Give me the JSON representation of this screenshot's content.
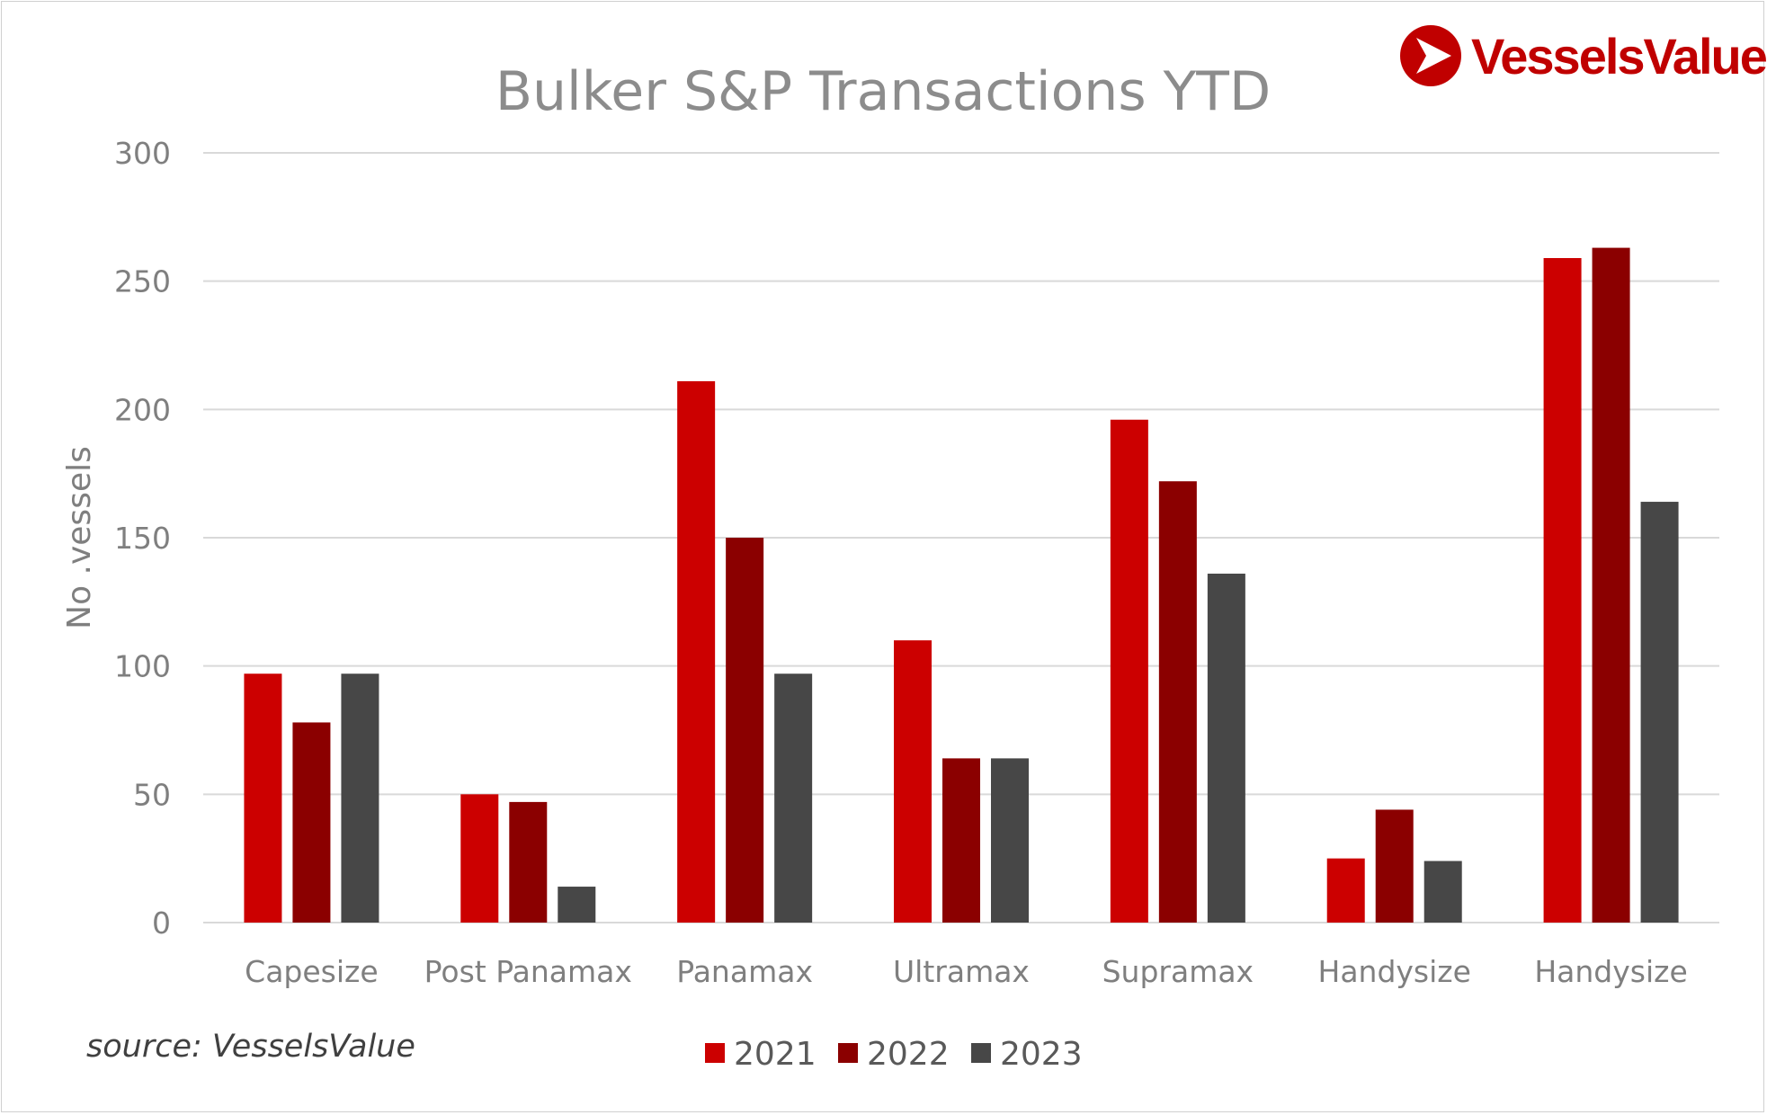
{
  "brand": {
    "name": "VesselsValue",
    "color": "#c00000"
  },
  "source_note": "source: VesselsValue",
  "chart_data": {
    "type": "bar",
    "title": "Bulker S&P Transactions YTD",
    "xlabel": "",
    "ylabel": "No .vessels",
    "ylim": [
      0,
      300
    ],
    "yticks": [
      0,
      50,
      100,
      150,
      200,
      250,
      300
    ],
    "grid": true,
    "legend_position": "bottom",
    "categories": [
      "Capesize",
      "Post Panamax",
      "Panamax",
      "Ultramax",
      "Supramax",
      "Handysize",
      "Handysize"
    ],
    "series": [
      {
        "name": "2021",
        "color": "#cc0000",
        "values": [
          97,
          50,
          211,
          110,
          196,
          25,
          259
        ]
      },
      {
        "name": "2022",
        "color": "#8b0000",
        "values": [
          78,
          47,
          150,
          64,
          172,
          44,
          263
        ]
      },
      {
        "name": "2023",
        "color": "#474747",
        "values": [
          97,
          14,
          97,
          64,
          136,
          24,
          164
        ]
      }
    ]
  }
}
